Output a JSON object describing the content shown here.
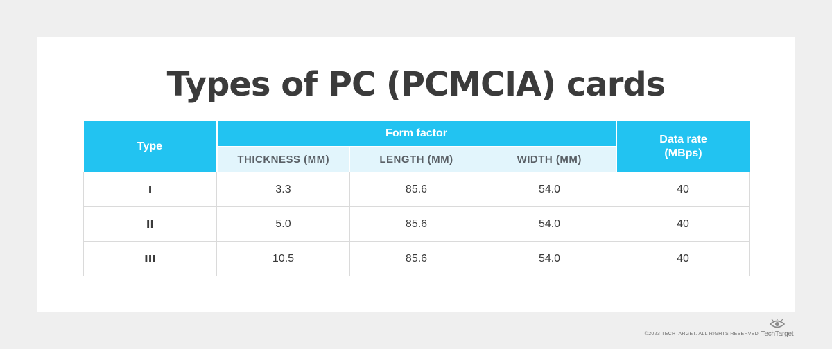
{
  "title": "Types of PC (PCMCIA) cards",
  "table": {
    "header_type": "Type",
    "header_form_factor": "Form factor",
    "header_data_rate_line1": "Data rate",
    "header_data_rate_line2": "(MBps)",
    "sub_thickness": "THICKNESS (MM)",
    "sub_length": "LENGTH (MM)",
    "sub_width": "WIDTH (MM)",
    "rows": [
      {
        "type": "I",
        "thickness": "3.3",
        "length": "85.6",
        "width": "54.0",
        "rate": "40"
      },
      {
        "type": "II",
        "thickness": "5.0",
        "length": "85.6",
        "width": "54.0",
        "rate": "40"
      },
      {
        "type": "III",
        "thickness": "10.5",
        "length": "85.6",
        "width": "54.0",
        "rate": "40"
      }
    ]
  },
  "footer": {
    "copyright": "©2023 TECHTARGET. ALL RIGHTS RESERVED",
    "brand": "TechTarget"
  },
  "colors": {
    "header": "#22c3f1",
    "subheader": "#e2f5fc",
    "background": "#efefef"
  }
}
